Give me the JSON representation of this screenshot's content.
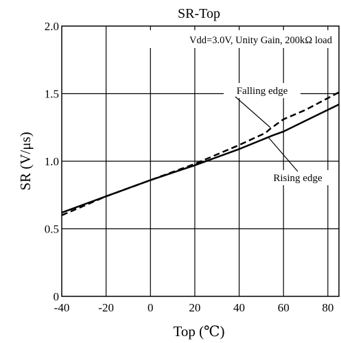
{
  "chart_data": {
    "type": "line",
    "title": "SR-Top",
    "xlabel": "Top (℃)",
    "ylabel": "SR (V/μs)",
    "condition_note": "Vdd=3.0V, Unity Gain, 200kΩ  load",
    "xlim": [
      -40,
      85
    ],
    "ylim": [
      0,
      2.0
    ],
    "x_ticks": [
      -40,
      -20,
      0,
      20,
      40,
      60,
      80
    ],
    "y_ticks": [
      0,
      0.5,
      1.0,
      1.5,
      2.0
    ],
    "x_tick_labels": [
      "-40",
      "-20",
      "0",
      "20",
      "40",
      "60",
      "80"
    ],
    "y_tick_labels": [
      "0",
      "0.5",
      "1.0",
      "1.5",
      "2.0"
    ],
    "grid": true,
    "series": [
      {
        "name": "Rising edge",
        "style": "solid",
        "color": "#000000",
        "x": [
          -40,
          -20,
          0,
          20,
          40,
          55,
          60,
          70,
          85
        ],
        "y": [
          0.62,
          0.74,
          0.86,
          0.97,
          1.09,
          1.19,
          1.22,
          1.3,
          1.42
        ]
      },
      {
        "name": "Falling edge",
        "style": "dashed",
        "color": "#000000",
        "x": [
          -40,
          -20,
          0,
          20,
          40,
          52,
          54,
          60,
          70,
          85
        ],
        "y": [
          0.6,
          0.74,
          0.86,
          0.98,
          1.12,
          1.21,
          1.24,
          1.31,
          1.38,
          1.51
        ]
      }
    ],
    "annotations": [
      {
        "text": "Falling edge",
        "series": "Falling edge",
        "point": [
          54,
          1.25
        ]
      },
      {
        "text": "Rising edge",
        "series": "Rising edge",
        "point": [
          53,
          1.18
        ]
      }
    ]
  }
}
